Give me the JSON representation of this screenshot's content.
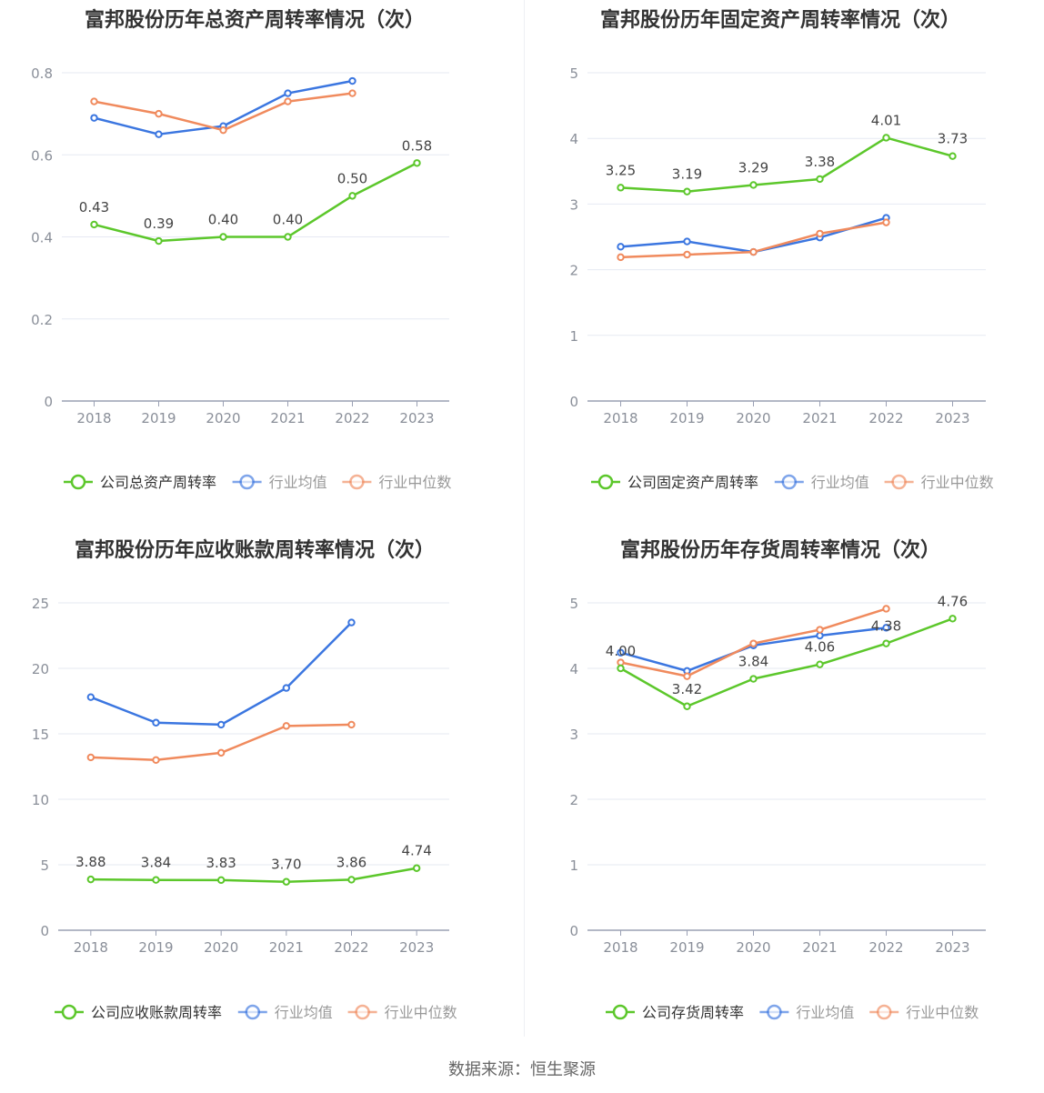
{
  "source": "数据来源：恒生聚源",
  "colors": {
    "company": "#5cc72b",
    "avg": "#3b76e0",
    "median": "#f08a5d",
    "grid": "#e6e9f2",
    "axis": "#9aa0b4",
    "tick": "#8a8f99"
  },
  "chart_data": [
    {
      "type": "line",
      "title": "富邦股份历年总资产周转率情况（次）",
      "categories": [
        "2018",
        "2019",
        "2020",
        "2021",
        "2022",
        "2023"
      ],
      "ylim": [
        0,
        0.8
      ],
      "yticks": [
        "0",
        "0.2",
        "0.4",
        "0.6",
        "0.8"
      ],
      "ytick_values": [
        0,
        0.2,
        0.4,
        0.6,
        0.8
      ],
      "series": [
        {
          "name": "公司总资产周转率",
          "key": "company",
          "values": [
            0.43,
            0.39,
            0.4,
            0.4,
            0.5,
            0.58
          ],
          "labels": [
            "0.43",
            "0.39",
            "0.40",
            "0.40",
            "0.50",
            "0.58"
          ]
        },
        {
          "name": "行业均值",
          "key": "avg",
          "values": [
            0.69,
            0.65,
            0.67,
            0.75,
            0.78,
            null
          ]
        },
        {
          "name": "行业中位数",
          "key": "median",
          "values": [
            0.73,
            0.7,
            0.66,
            0.73,
            0.75,
            null
          ]
        }
      ]
    },
    {
      "type": "line",
      "title": "富邦股份历年固定资产周转率情况（次）",
      "categories": [
        "2018",
        "2019",
        "2020",
        "2021",
        "2022",
        "2023"
      ],
      "ylim": [
        0,
        5
      ],
      "yticks": [
        "0",
        "1",
        "2",
        "3",
        "4",
        "5"
      ],
      "ytick_values": [
        0,
        1,
        2,
        3,
        4,
        5
      ],
      "series": [
        {
          "name": "公司固定资产周转率",
          "key": "company",
          "values": [
            3.25,
            3.19,
            3.29,
            3.38,
            4.01,
            3.73
          ],
          "labels": [
            "3.25",
            "3.19",
            "3.29",
            "3.38",
            "4.01",
            "3.73"
          ]
        },
        {
          "name": "行业均值",
          "key": "avg",
          "values": [
            2.35,
            2.43,
            2.27,
            2.49,
            2.79,
            null
          ]
        },
        {
          "name": "行业中位数",
          "key": "median",
          "values": [
            2.19,
            2.23,
            2.27,
            2.55,
            2.72,
            null
          ]
        }
      ]
    },
    {
      "type": "line",
      "title": "富邦股份历年应收账款周转率情况（次）",
      "categories": [
        "2018",
        "2019",
        "2020",
        "2021",
        "2022",
        "2023"
      ],
      "ylim": [
        0,
        25
      ],
      "yticks": [
        "0",
        "5",
        "10",
        "15",
        "20",
        "25"
      ],
      "ytick_values": [
        0,
        5,
        10,
        15,
        20,
        25
      ],
      "series": [
        {
          "name": "公司应收账款周转率",
          "key": "company",
          "values": [
            3.88,
            3.84,
            3.83,
            3.7,
            3.86,
            4.74
          ],
          "labels": [
            "3.88",
            "3.84",
            "3.83",
            "3.70",
            "3.86",
            "4.74"
          ]
        },
        {
          "name": "行业均值",
          "key": "avg",
          "values": [
            17.8,
            15.85,
            15.7,
            18.5,
            23.5,
            null
          ]
        },
        {
          "name": "行业中位数",
          "key": "median",
          "values": [
            13.2,
            13.0,
            13.55,
            15.6,
            15.7,
            null
          ]
        }
      ]
    },
    {
      "type": "line",
      "title": "富邦股份历年存货周转率情况（次）",
      "categories": [
        "2018",
        "2019",
        "2020",
        "2021",
        "2022",
        "2023"
      ],
      "ylim": [
        0,
        5
      ],
      "yticks": [
        "0",
        "1",
        "2",
        "3",
        "4",
        "5"
      ],
      "ytick_values": [
        0,
        1,
        2,
        3,
        4,
        5
      ],
      "series": [
        {
          "name": "公司存货周转率",
          "key": "company",
          "values": [
            4.0,
            3.42,
            3.84,
            4.06,
            4.38,
            4.76
          ],
          "labels": [
            "4.00",
            "3.42",
            "3.84",
            "4.06",
            "4.38",
            "4.76"
          ]
        },
        {
          "name": "行业均值",
          "key": "avg",
          "values": [
            4.24,
            3.96,
            4.35,
            4.5,
            4.62,
            null
          ]
        },
        {
          "name": "行业中位数",
          "key": "median",
          "values": [
            4.09,
            3.88,
            4.38,
            4.59,
            4.91,
            null
          ]
        }
      ]
    }
  ]
}
